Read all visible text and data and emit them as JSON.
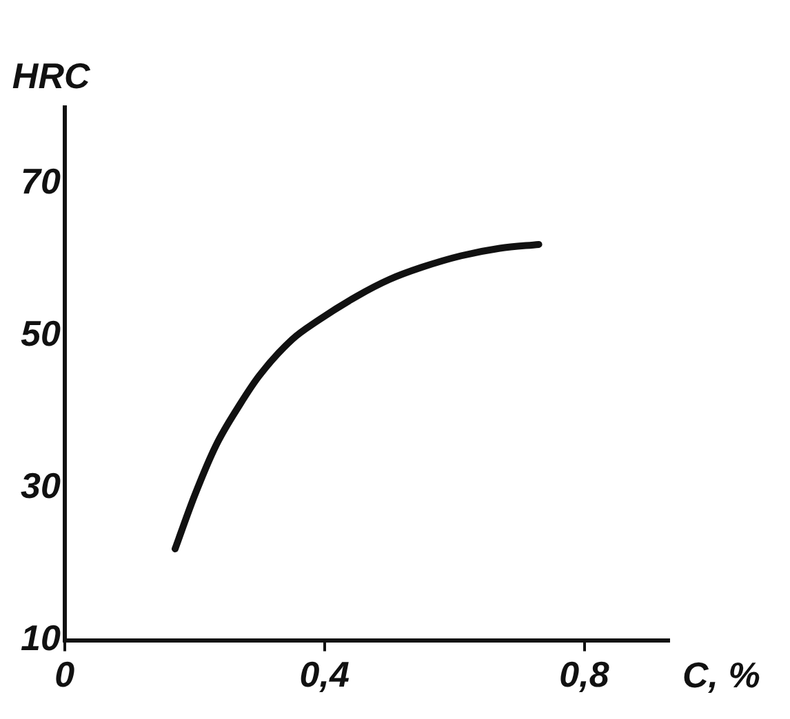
{
  "chart_data": {
    "type": "line",
    "xlabel": "C, %",
    "ylabel": "HRC",
    "x": [
      0.17,
      0.2,
      0.233,
      0.27,
      0.3,
      0.35,
      0.39,
      0.45,
      0.5,
      0.55,
      0.61,
      0.67,
      0.73
    ],
    "series": [
      {
        "color": "#111111",
        "values": [
          22,
          29,
          35.6,
          41,
          44.8,
          49.5,
          52,
          55.2,
          57.4,
          59,
          60.5,
          61.5,
          62
        ]
      }
    ],
    "xlim": [
      0,
      0.93
    ],
    "xticks": [
      {
        "value": 0,
        "label": "0"
      },
      {
        "value": 0.4,
        "label": "0,4"
      },
      {
        "value": 0.8,
        "label": "0,8"
      }
    ],
    "ylim": [
      10,
      80
    ],
    "yticks": [
      10,
      30,
      50,
      70
    ],
    "grid": false,
    "legend": false,
    "marker": "none",
    "line_style": "solid"
  }
}
